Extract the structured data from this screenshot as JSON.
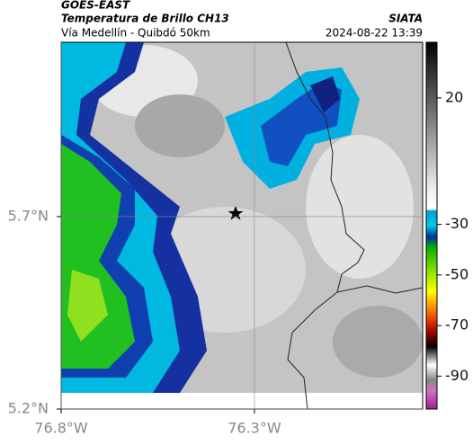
{
  "header": {
    "satellite": "GOES-EAST",
    "title": "Temperatura de Brillo CH13",
    "source": "SIATA",
    "subtitle": "Vía Medellín - Quibdó 50km",
    "datetime": "2024-08-22 13:39"
  },
  "map": {
    "xlim": [
      -76.8,
      -75.865
    ],
    "ylim": [
      5.2,
      6.153
    ],
    "xticks": [
      {
        "value": -76.8,
        "label": "76.8°W"
      },
      {
        "value": -76.3,
        "label": "76.3°W"
      }
    ],
    "yticks": [
      {
        "value": 5.2,
        "label": "5.2°N"
      },
      {
        "value": 5.7,
        "label": "5.7°N"
      }
    ],
    "grid": true
  },
  "colorbar": {
    "lim": [
      42,
      -103
    ],
    "ticks": [
      20,
      -30,
      -50,
      -70,
      -90
    ]
  }
}
